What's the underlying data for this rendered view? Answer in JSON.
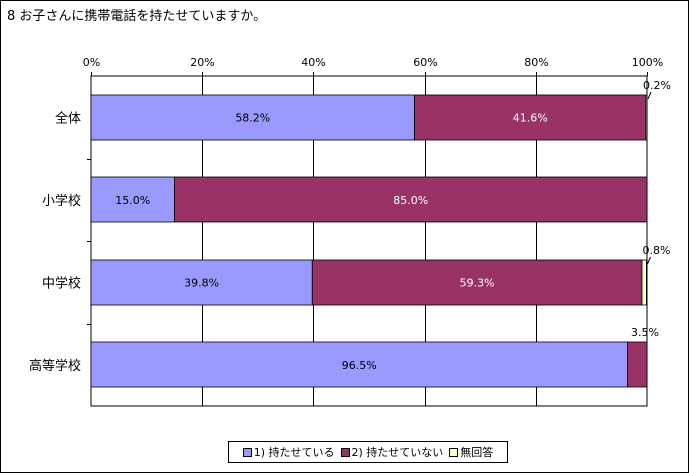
{
  "chart_data": {
    "type": "bar",
    "orientation": "horizontal",
    "stacked": true,
    "title": "8 お子さんに携帯電話を持たせていますか。",
    "categories": [
      "全体",
      "小学校",
      "中学校",
      "高等学校"
    ],
    "series": [
      {
        "name": "1) 持たせている",
        "color": "#9999ff",
        "values": [
          58.2,
          15.0,
          39.8,
          96.5
        ],
        "labels": [
          "58.2%",
          "15.0%",
          "39.8%",
          "96.5%"
        ]
      },
      {
        "name": "2) 持たせていない",
        "color": "#993366",
        "values": [
          41.6,
          85.0,
          59.3,
          3.5
        ],
        "labels": [
          "41.6%",
          "85.0%",
          "59.3%",
          "3.5%"
        ]
      },
      {
        "name": "無回答",
        "color": "#ffffcc",
        "values": [
          0.2,
          0.0,
          0.8,
          0.0
        ],
        "labels": [
          "0.2%",
          "",
          "0.8%",
          ""
        ]
      }
    ],
    "xlim": [
      0,
      100
    ],
    "xticks": [
      "0%",
      "20%",
      "40%",
      "60%",
      "80%",
      "100%"
    ],
    "grid": true,
    "legend_position": "bottom"
  }
}
